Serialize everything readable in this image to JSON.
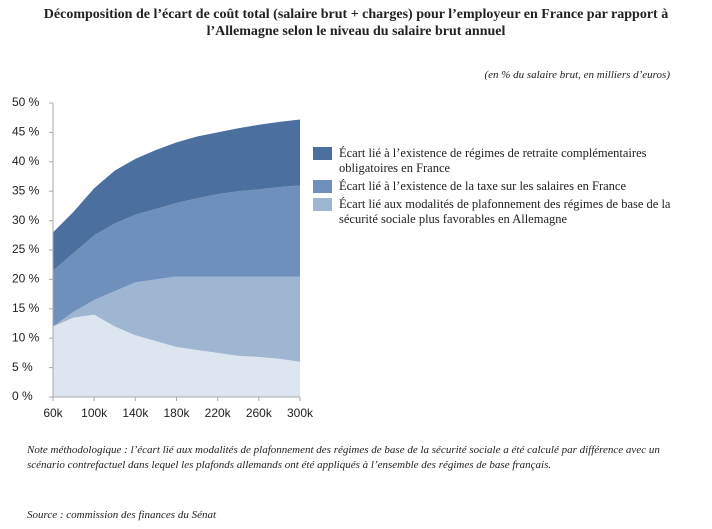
{
  "chart_data": {
    "type": "stacked_area",
    "title": "Décomposition de l’écart de coût total (salaire brut + charges) pour l’employeur en France par rapport à l’Allemagne selon le niveau du salaire brut annuel",
    "subtitle": "(en % du salaire brut, en milliers d’euros)",
    "x": [
      60,
      80,
      100,
      120,
      140,
      160,
      180,
      200,
      220,
      240,
      260,
      280,
      300
    ],
    "series": [
      {
        "color": "#dde6f0",
        "values": [
          12,
          13.5,
          14,
          12,
          10.5,
          9.5,
          8.5,
          8,
          7.5,
          7,
          6.8,
          6.5,
          6
        ]
      },
      {
        "name": "Écart lié aux modalités de plafonnement des régimes de base de la sécurité sociale plus favorables en Allemagne",
        "color": "#9fb6d2",
        "values": [
          0,
          1,
          2.5,
          6,
          9,
          10.5,
          12,
          12.5,
          13,
          13.5,
          13.7,
          14,
          14.5
        ]
      },
      {
        "name": "Écart lié à l’existence de la taxe sur les salaires en France",
        "color": "#6f8fbd",
        "values": [
          9.5,
          10,
          11,
          11.5,
          11.5,
          12,
          12.5,
          13.3,
          14,
          14.5,
          14.8,
          15.2,
          15.5
        ]
      },
      {
        "name": "Écart lié à l’existence de régimes de retraite complémentaires obligatoires en France",
        "color": "#4b70a0",
        "values": [
          6.5,
          7,
          8,
          9,
          9.5,
          10,
          10.3,
          10.5,
          10.5,
          10.7,
          11,
          11.1,
          11.2
        ]
      }
    ],
    "xlim": [
      60,
      300
    ],
    "xticks": [
      {
        "value": 60,
        "label": "60k"
      },
      {
        "value": 100,
        "label": "100k"
      },
      {
        "value": 140,
        "label": "140k"
      },
      {
        "value": 180,
        "label": "180k"
      },
      {
        "value": 220,
        "label": "220k"
      },
      {
        "value": 260,
        "label": "260k"
      },
      {
        "value": 300,
        "label": "300k"
      }
    ],
    "ylim": [
      0,
      50
    ],
    "yticks": [
      {
        "value": 0,
        "label": "0 %"
      },
      {
        "value": 5,
        "label": "5 %"
      },
      {
        "value": 10,
        "label": "10 %"
      },
      {
        "value": 15,
        "label": "15 %"
      },
      {
        "value": 20,
        "label": "20 %"
      },
      {
        "value": 25,
        "label": "25 %"
      },
      {
        "value": 30,
        "label": "30 %"
      },
      {
        "value": 35,
        "label": "35 %"
      },
      {
        "value": 40,
        "label": "40 %"
      },
      {
        "value": 45,
        "label": "45 %"
      },
      {
        "value": 50,
        "label": "50 %"
      }
    ],
    "note": "Note méthodologique : l’écart lié aux modalités de plafonnement des régimes de base de la sécurité sociale a été calculé par différence avec un scénario contrefactuel dans lequel les plafonds allemands ont été appliqués à l’ensemble des régimes de base français.",
    "source": "Source : commission des finances du Sénat"
  }
}
